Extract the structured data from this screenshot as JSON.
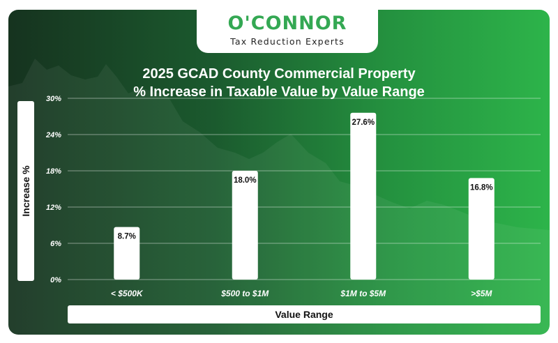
{
  "logo": {
    "name": "O'CONNOR",
    "tagline": "Tax Reduction Experts"
  },
  "colors": {
    "accent": "#34a853",
    "bar": "#ffffff",
    "background_dark": "#16331f",
    "background_light": "#2db44a"
  },
  "chart_data": {
    "type": "bar",
    "title": "2025 GCAD County Commercial Property",
    "subtitle": "% Increase in Taxable Value by Value Range",
    "xlabel": "Value Range",
    "ylabel": "Increase %",
    "categories": [
      "< $500K",
      "$500 to $1M",
      "$1M to $5M",
      ">$5M"
    ],
    "values": [
      8.7,
      18.0,
      27.6,
      16.8
    ],
    "data_labels": [
      "8.7%",
      "18.0%",
      "27.6%",
      "16.8%"
    ],
    "ylim": [
      0,
      30
    ],
    "yticks": [
      0,
      6,
      12,
      18,
      24,
      30
    ],
    "ytick_labels": [
      "0%",
      "6%",
      "12%",
      "18%",
      "24%",
      "30%"
    ],
    "grid": true,
    "legend": "none"
  }
}
